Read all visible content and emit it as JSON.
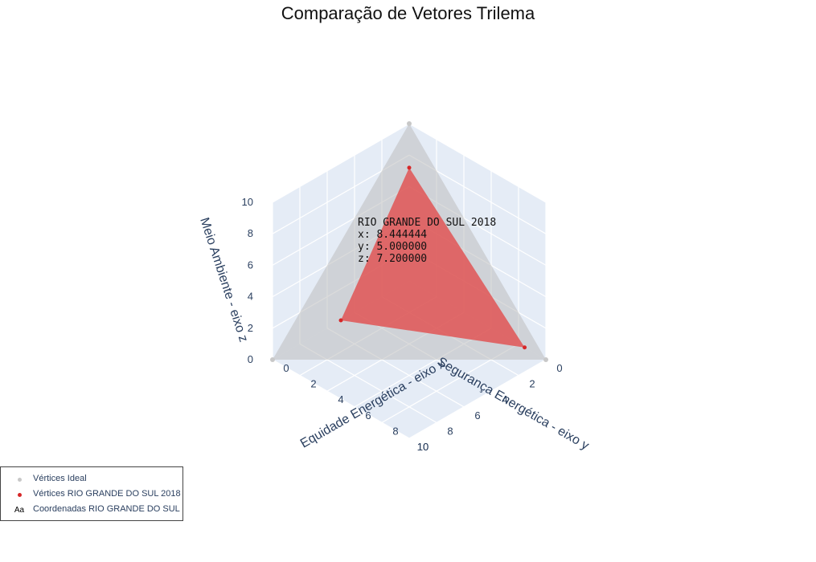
{
  "chart_data": {
    "type": "scatter3d",
    "title": "Comparação de Vetores Trilema",
    "axes": {
      "x": {
        "label": "Equidade Energética - eixo x",
        "ticks": [
          "0",
          "2",
          "4",
          "6",
          "8",
          "10"
        ],
        "range": [
          0,
          10
        ]
      },
      "y": {
        "label": "Segurança Energética - eixo y",
        "ticks": [
          "0",
          "2",
          "4",
          "6",
          "8",
          "10"
        ],
        "range": [
          0,
          10
        ]
      },
      "z": {
        "label": "Meio Ambiente - eixo z",
        "ticks": [
          "0",
          "2",
          "4",
          "6",
          "8",
          "10"
        ],
        "range": [
          0,
          10
        ]
      }
    },
    "grid": true,
    "series": [
      {
        "name": "Vértices Ideal",
        "marker": "dot",
        "color": "#c8c8c8",
        "points": [
          [
            10,
            0,
            0
          ],
          [
            0,
            10,
            0
          ],
          [
            0,
            0,
            10
          ]
        ]
      },
      {
        "name": "Vértices RIO GRANDE DO SUL 2018",
        "marker": "dot",
        "color": "#d62728",
        "points": [
          [
            8.444444,
            0,
            0
          ],
          [
            0,
            5.0,
            0
          ],
          [
            0,
            0,
            7.2
          ]
        ]
      },
      {
        "name": "Coordenadas RIO GRANDE DO SUL",
        "marker": "text"
      }
    ],
    "surfaces": [
      {
        "series": "Vértices Ideal",
        "color": "#bdbdbd",
        "opacity": 0.55
      },
      {
        "series": "Vértices RIO GRANDE DO SUL 2018",
        "color": "#e05555",
        "opacity": 0.85
      }
    ],
    "annotation": {
      "lines": [
        "RIO GRANDE DO SUL 2018",
        "x: 8.444444",
        "y: 5.000000",
        "z: 7.200000"
      ]
    },
    "legend_placement": "bottom-left"
  },
  "legend": {
    "items": [
      {
        "label": "Vértices Ideal",
        "symbol": "dot",
        "color": "#c8c8c8"
      },
      {
        "label": "Vértices RIO GRANDE DO SUL 2018",
        "symbol": "dot",
        "color": "#d62728"
      },
      {
        "label": "Coordenadas RIO GRANDE DO SUL",
        "symbol": "Aa"
      }
    ]
  },
  "colors": {
    "pane": "#e5ecf6",
    "grid": "#ffffff",
    "text": "#2a3f5f"
  }
}
